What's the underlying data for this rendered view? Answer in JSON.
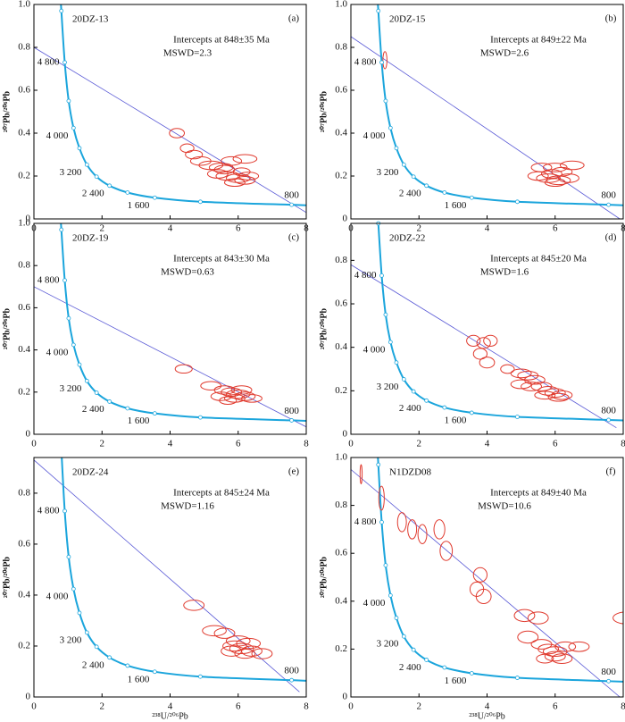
{
  "concordia": {
    "labels": [
      "800",
      null,
      "1 600",
      null,
      "2 400",
      null,
      "3 200",
      null,
      "4 000",
      null,
      "4 800",
      null
    ],
    "x": [
      7.57,
      4.89,
      3.55,
      2.75,
      2.22,
      1.84,
      1.556,
      1.337,
      1.163,
      1.021,
      0.905,
      0.806
    ],
    "y": [
      0.066,
      0.08,
      0.099,
      0.123,
      0.155,
      0.197,
      0.253,
      0.33,
      0.424,
      0.55,
      0.73,
      0.97
    ]
  },
  "chart_data": [
    {
      "type": "concordia",
      "panel": "(a)",
      "sample": "20DZ-13",
      "annotations": [
        "Intercepts at 848±35 Ma",
        "MSWD=2.3"
      ],
      "ylabel": "²⁰⁷Pb/²⁰⁶Pb",
      "xlim": [
        0,
        8
      ],
      "ylim": [
        0,
        1
      ],
      "xticks": [
        0,
        2,
        4,
        6,
        8
      ],
      "yticks": [
        0,
        0.2,
        0.4,
        0.6,
        0.8,
        {
          "value": 1,
          "label": "1.0"
        }
      ],
      "color": "#e03a2e",
      "discordia": {
        "x": [
          0,
          8
        ],
        "y": [
          0.8,
          0.03
        ]
      },
      "x": [
        4.2,
        4.5,
        4.7,
        4.9,
        5.2,
        5.5,
        5.8,
        6.2,
        5.4,
        5.7,
        6.0,
        6.2,
        5.9,
        6.3,
        5.6,
        6.1
      ],
      "y": [
        0.4,
        0.33,
        0.3,
        0.27,
        0.25,
        0.24,
        0.27,
        0.28,
        0.21,
        0.2,
        0.19,
        0.18,
        0.17,
        0.2,
        0.23,
        0.22
      ],
      "x_err": [
        0.22,
        0.2,
        0.25,
        0.3,
        0.35,
        0.35,
        0.3,
        0.35,
        0.3,
        0.35,
        0.35,
        0.3,
        0.3,
        0.3,
        0.3,
        0.25
      ],
      "y_err": [
        0.022,
        0.02,
        0.02,
        0.02,
        0.02,
        0.02,
        0.02,
        0.02,
        0.02,
        0.02,
        0.02,
        0.018,
        0.018,
        0.018,
        0.02,
        0.018
      ]
    },
    {
      "type": "concordia",
      "panel": "(b)",
      "sample": "20DZ-15",
      "annotations": [
        "Intercepts at 849±22 Ma",
        "MSWD=2.6"
      ],
      "ylabel": "²⁰⁷Pb/²⁰⁶Pb",
      "xlim": [
        0,
        8
      ],
      "ylim": [
        0,
        1
      ],
      "xticks": [
        0,
        2,
        4,
        6,
        8
      ],
      "yticks": [
        0,
        0.2,
        0.4,
        0.6,
        0.8,
        {
          "value": 1,
          "label": "1.0"
        }
      ],
      "color": "#e03a2e",
      "discordia": {
        "x": [
          0,
          7.9
        ],
        "y": [
          0.85,
          0
        ]
      },
      "x": [
        1.0,
        5.6,
        6.0,
        6.5,
        5.5,
        5.8,
        6.1,
        6.4,
        5.9,
        6.2,
        6.0
      ],
      "y": [
        0.74,
        0.24,
        0.24,
        0.25,
        0.2,
        0.19,
        0.18,
        0.19,
        0.21,
        0.22,
        0.17
      ],
      "x_err": [
        0.06,
        0.3,
        0.35,
        0.35,
        0.3,
        0.35,
        0.35,
        0.3,
        0.3,
        0.3,
        0.3
      ],
      "y_err": [
        0.04,
        0.02,
        0.02,
        0.02,
        0.02,
        0.02,
        0.02,
        0.02,
        0.02,
        0.02,
        0.018
      ]
    },
    {
      "type": "concordia",
      "panel": "(c)",
      "sample": "20DZ-19",
      "annotations": [
        "Intercepts at 843±30 Ma",
        "MSWD=0.63"
      ],
      "ylabel": "²⁰⁷Pb/²⁰⁶Pb",
      "xlim": [
        0,
        8
      ],
      "ylim": [
        0,
        1
      ],
      "xticks": [
        0,
        2,
        4,
        6,
        8
      ],
      "yticks": [
        0,
        0.2,
        0.4,
        0.6,
        0.8,
        {
          "value": 1,
          "label": "1.0"
        }
      ],
      "color": "#e03a2e",
      "discordia": {
        "x": [
          0,
          8
        ],
        "y": [
          0.7,
          0.035
        ]
      },
      "x": [
        4.4,
        5.2,
        5.6,
        5.8,
        6.0,
        5.5,
        6.2,
        6.4,
        5.9,
        6.1,
        5.7
      ],
      "y": [
        0.31,
        0.23,
        0.21,
        0.2,
        0.19,
        0.18,
        0.18,
        0.17,
        0.17,
        0.21,
        0.16
      ],
      "x_err": [
        0.25,
        0.3,
        0.3,
        0.3,
        0.35,
        0.3,
        0.3,
        0.3,
        0.3,
        0.3,
        0.25
      ],
      "y_err": [
        0.02,
        0.02,
        0.02,
        0.02,
        0.02,
        0.02,
        0.02,
        0.018,
        0.018,
        0.02,
        0.018
      ]
    },
    {
      "type": "concordia",
      "panel": "(d)",
      "sample": "20DZ-22",
      "annotations": [
        "Intercepts at 845±20 Ma",
        "MSWD=1.6"
      ],
      "ylabel": "²⁰⁷Pb/²⁰⁶Pb",
      "xlim": [
        0,
        8
      ],
      "ylim": [
        0,
        0.97
      ],
      "xticks": [
        0,
        2,
        4,
        6,
        8
      ],
      "yticks": [
        0,
        0.2,
        0.4,
        0.6,
        0.8
      ],
      "color": "#e03a2e",
      "discordia": {
        "x": [
          0,
          7.8
        ],
        "y": [
          0.78,
          0.03
        ]
      },
      "x": [
        3.6,
        3.9,
        4.1,
        3.8,
        4.0,
        4.6,
        5.0,
        5.2,
        5.4,
        5.0,
        5.3,
        5.6,
        5.8,
        6.0,
        6.2,
        5.7,
        6.1
      ],
      "y": [
        0.43,
        0.42,
        0.43,
        0.37,
        0.33,
        0.3,
        0.28,
        0.27,
        0.25,
        0.23,
        0.22,
        0.22,
        0.2,
        0.19,
        0.18,
        0.18,
        0.17
      ],
      "x_err": [
        0.2,
        0.2,
        0.2,
        0.2,
        0.22,
        0.2,
        0.3,
        0.3,
        0.3,
        0.3,
        0.3,
        0.3,
        0.3,
        0.3,
        0.3,
        0.3,
        0.3
      ],
      "y_err": [
        0.025,
        0.025,
        0.025,
        0.025,
        0.025,
        0.02,
        0.02,
        0.02,
        0.02,
        0.02,
        0.02,
        0.02,
        0.02,
        0.02,
        0.02,
        0.018,
        0.018
      ]
    },
    {
      "type": "concordia",
      "panel": "(e)",
      "sample": "20DZ-24",
      "annotations": [
        "Intercepts at 845±24 Ma",
        "MSWD=1.16"
      ],
      "ylabel": "²⁰⁷Pb/²⁰⁶Pb",
      "xlabel": "²³⁸U/²⁰⁶Pb",
      "xlim": [
        0,
        8
      ],
      "ylim": [
        0,
        0.94
      ],
      "xticks": [
        0,
        2,
        4,
        6,
        8
      ],
      "yticks": [
        0,
        0.2,
        0.4,
        0.6,
        0.8
      ],
      "color": "#e03a2e",
      "discordia": {
        "x": [
          0,
          7.8
        ],
        "y": [
          0.93,
          0.02
        ]
      },
      "x": [
        4.7,
        5.3,
        5.6,
        6.0,
        6.3,
        5.9,
        6.1,
        6.4,
        6.7,
        5.8,
        6.2
      ],
      "y": [
        0.36,
        0.26,
        0.25,
        0.22,
        0.21,
        0.2,
        0.19,
        0.18,
        0.17,
        0.18,
        0.17
      ],
      "x_err": [
        0.3,
        0.35,
        0.3,
        0.35,
        0.35,
        0.35,
        0.35,
        0.3,
        0.3,
        0.3,
        0.3
      ],
      "y_err": [
        0.02,
        0.02,
        0.02,
        0.02,
        0.02,
        0.02,
        0.02,
        0.02,
        0.02,
        0.02,
        0.018
      ]
    },
    {
      "type": "concordia",
      "panel": "(f)",
      "sample": "N1DZD08",
      "annotations": [
        "Intercepts at 849±40 Ma",
        "MSWD=10.6"
      ],
      "ylabel": "²⁰⁷Pb/²⁰⁶Pb",
      "xlabel": "²³⁸U/²⁰⁶Pb",
      "xlim": [
        0,
        8
      ],
      "ylim": [
        0,
        1
      ],
      "xticks": [
        0,
        2,
        4,
        6,
        8
      ],
      "yticks": [
        0,
        0.2,
        0.4,
        0.6,
        0.8,
        {
          "value": 1,
          "label": "1.0"
        }
      ],
      "color": "#e03a2e",
      "discordia": {
        "x": [
          0,
          7.9
        ],
        "y": [
          0.95,
          0
        ]
      },
      "x": [
        0.3,
        0.9,
        1.5,
        1.8,
        2.1,
        2.6,
        2.8,
        3.8,
        3.7,
        3.9,
        5.1,
        5.5,
        8.1,
        5.2,
        5.6,
        5.8,
        6.0,
        6.3,
        6.7,
        6.0,
        6.2,
        5.7
      ],
      "y": [
        0.93,
        0.83,
        0.73,
        0.7,
        0.68,
        0.7,
        0.61,
        0.51,
        0.45,
        0.42,
        0.34,
        0.33,
        0.33,
        0.25,
        0.22,
        0.2,
        0.19,
        0.21,
        0.21,
        0.17,
        0.16,
        0.16
      ],
      "x_err": [
        0.03,
        0.08,
        0.13,
        0.13,
        0.13,
        0.16,
        0.18,
        0.2,
        0.2,
        0.22,
        0.3,
        0.3,
        0.4,
        0.3,
        0.3,
        0.3,
        0.35,
        0.3,
        0.3,
        0.3,
        0.3,
        0.25
      ],
      "y_err": [
        0.04,
        0.05,
        0.04,
        0.04,
        0.04,
        0.04,
        0.04,
        0.03,
        0.03,
        0.03,
        0.025,
        0.025,
        0.025,
        0.025,
        0.02,
        0.02,
        0.02,
        0.02,
        0.02,
        0.02,
        0.02,
        0.018
      ]
    }
  ]
}
